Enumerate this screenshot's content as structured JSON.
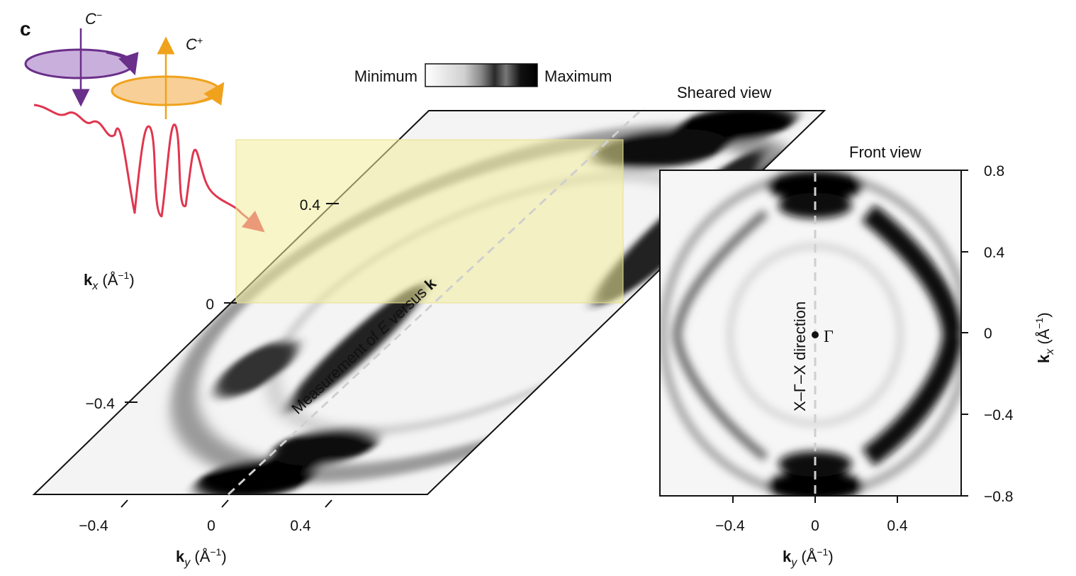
{
  "panel": {
    "letter": "c"
  },
  "polarization": {
    "minus_label": "C",
    "minus_sup": "−",
    "plus_label": "C",
    "plus_sup": "+"
  },
  "colorbar": {
    "min_label": "Minimum",
    "max_label": "Maximum"
  },
  "sheared_view": {
    "title": "Sheared view",
    "measurement_label": "Measurement of ",
    "measurement_e": "E",
    "measurement_mid": " versus ",
    "measurement_k": "k",
    "kx_ticks": [
      "0.4",
      "0",
      "−0.4"
    ],
    "ky_ticks": [
      "−0.4",
      "0",
      "0.4"
    ],
    "kx_axis": {
      "k": "k",
      "sub": "x",
      "unit": " (Å",
      "exp": "−1",
      "close": ")"
    },
    "ky_axis": {
      "k": "k",
      "sub": "y",
      "unit": " (Å",
      "exp": "−1",
      "close": ")"
    }
  },
  "front_view": {
    "title": "Front view",
    "direction_label": "X–Γ–X  direction",
    "gamma_label": "Γ",
    "kx_ticks": [
      "0.8",
      "0.4",
      "0",
      "−0.4",
      "−0.8"
    ],
    "ky_ticks": [
      "−0.4",
      "0",
      "0.4"
    ],
    "kx_axis": {
      "k": "k",
      "sub": "x",
      "unit": " (Å",
      "exp": "−1",
      "close": ")"
    },
    "ky_axis": {
      "k": "k",
      "sub": "y",
      "unit": " (Å",
      "exp": "−1",
      "close": ")"
    }
  },
  "colors": {
    "purple": "#6a2f8a",
    "orange": "#f0a21c",
    "red": "#e0364f",
    "highlight": "#f3ec9a"
  }
}
